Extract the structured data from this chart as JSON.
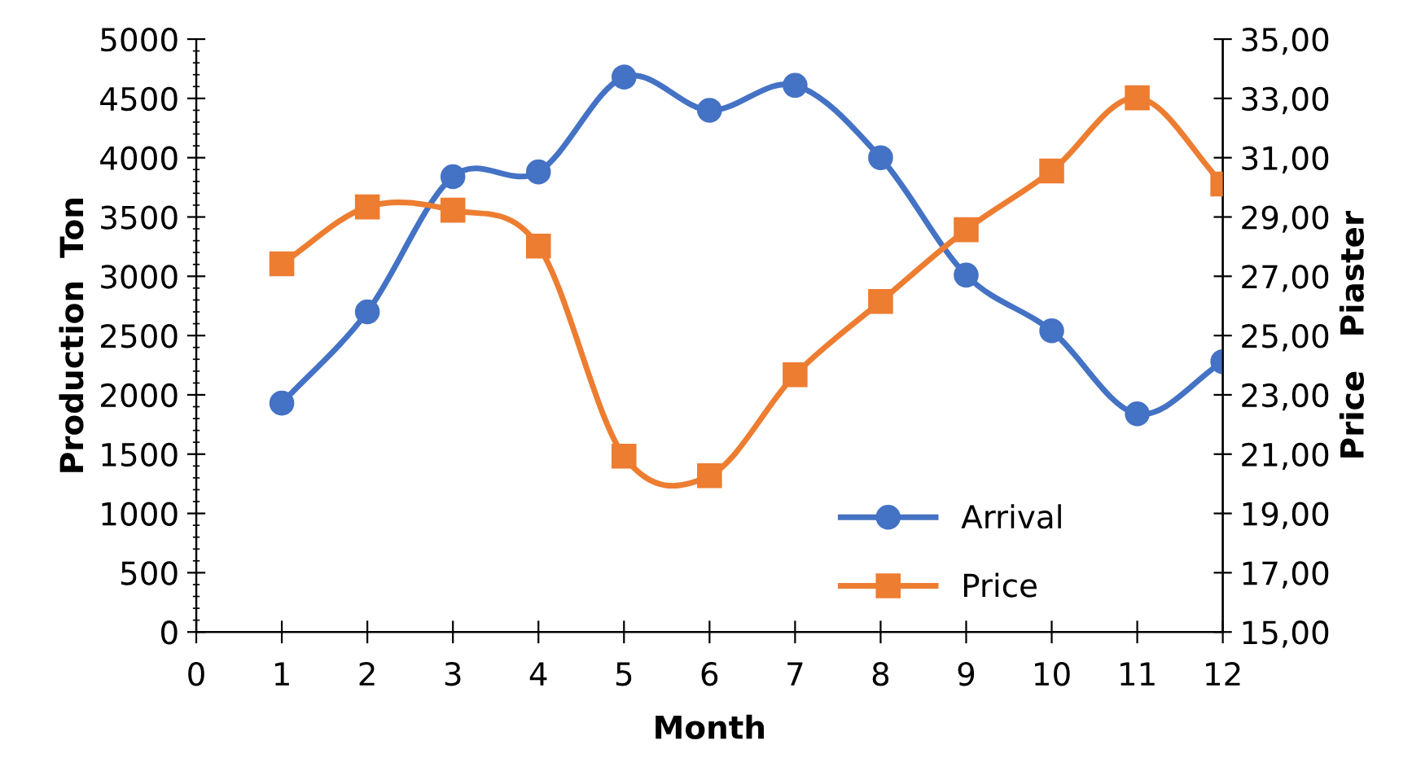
{
  "chart_data": {
    "type": "line",
    "xlabel": "Month",
    "ylabel": "Production  Ton",
    "y2label": "Price   Piaster",
    "x": [
      1,
      2,
      3,
      4,
      5,
      6,
      7,
      8,
      9,
      10,
      11,
      12
    ],
    "series": [
      {
        "name": "Arrival",
        "color": "#4472c4",
        "marker": "circle",
        "values": [
          1930,
          2700,
          3840,
          3880,
          4680,
          4400,
          4610,
          4000,
          3010,
          2540,
          1840,
          2280
        ]
      },
      {
        "name": "Price",
        "color": "#ed7d31",
        "marker": "square",
        "axis": "y2",
        "values": [
          27.42,
          29.34,
          29.23,
          28.02,
          20.93,
          20.27,
          23.68,
          26.15,
          28.57,
          30.55,
          33.02,
          30.11
        ]
      }
    ],
    "xlim": [
      0,
      12
    ],
    "xticks": [
      0,
      1,
      2,
      3,
      4,
      5,
      6,
      7,
      8,
      9,
      10,
      11,
      12
    ],
    "ylim": [
      0,
      5000
    ],
    "yticks": [
      0,
      500,
      1000,
      1500,
      2000,
      2500,
      3000,
      3500,
      4000,
      4500,
      5000
    ],
    "y2lim": [
      15,
      35
    ],
    "y2ticks": [
      {
        "value": 15,
        "label": "15,00"
      },
      {
        "value": 17,
        "label": "17,00"
      },
      {
        "value": 19,
        "label": "19,00"
      },
      {
        "value": 21,
        "label": "21,00"
      },
      {
        "value": 23,
        "label": "23,00"
      },
      {
        "value": 25,
        "label": "25,00"
      },
      {
        "value": 27,
        "label": "27,00"
      },
      {
        "value": 29,
        "label": "29,00"
      },
      {
        "value": 31,
        "label": "31,00"
      },
      {
        "value": 33,
        "label": "33,00"
      },
      {
        "value": 35,
        "label": "35,00"
      }
    ],
    "grid": false,
    "legend": "bottom",
    "line_style": "solid"
  }
}
